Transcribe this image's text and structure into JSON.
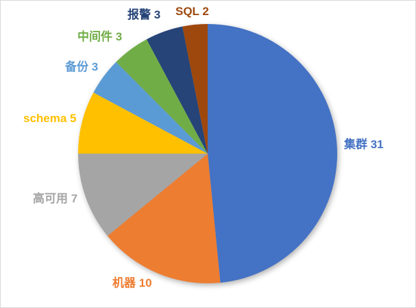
{
  "chart_data": {
    "type": "pie",
    "title": "",
    "total": 64,
    "start_angle_deg": 0,
    "direction": "clockwise",
    "legend_position": "none",
    "data_labels": "category name and value, outside end, colored to match slice",
    "slices": [
      {
        "name": "集群",
        "value": 31,
        "label": "集群 31",
        "color": "#4472C4"
      },
      {
        "name": "机器",
        "value": 10,
        "label": "机器 10",
        "color": "#ED7D31"
      },
      {
        "name": "高可用",
        "value": 7,
        "label": "高可用 7",
        "color": "#A5A5A5"
      },
      {
        "name": "schema",
        "value": 5,
        "label": "schema 5",
        "color": "#FFC000"
      },
      {
        "name": "备份",
        "value": 3,
        "label": "备份 3",
        "color": "#5B9BD5"
      },
      {
        "name": "中间件",
        "value": 3,
        "label": "中间件 3",
        "color": "#70AD47"
      },
      {
        "name": "报警",
        "value": 3,
        "label": "报警 3",
        "color": "#264478"
      },
      {
        "name": "SQL",
        "value": 2,
        "label": "SQL 2",
        "color": "#9E480E"
      }
    ],
    "colors": {
      "background": "#FFFFFF",
      "frame_border": "#D9D9D9"
    }
  }
}
